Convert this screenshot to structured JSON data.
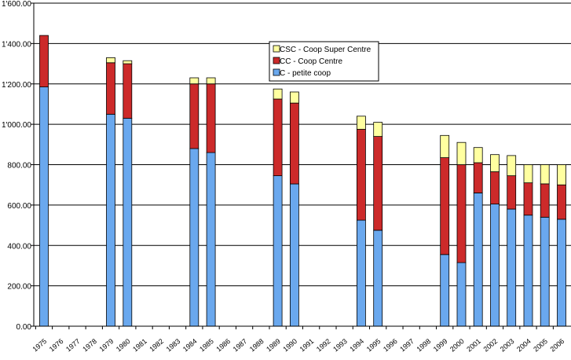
{
  "chart_data": {
    "type": "bar",
    "stacked": true,
    "title": "",
    "xlabel": "",
    "ylabel": "",
    "ylim": [
      0,
      1600
    ],
    "ytick_values": [
      0,
      200,
      400,
      600,
      800,
      1000,
      1200,
      1400,
      1600
    ],
    "ytick_labels": [
      "0.00",
      "200.00",
      "400.00",
      "600.00",
      "800.00",
      "1'000.00",
      "1'200.00",
      "1'400.00",
      "1'600.00"
    ],
    "grid": "horizontal",
    "legend_position": "top-center",
    "categories": [
      "1975",
      "1976",
      "1977",
      "1978",
      "1979",
      "1980",
      "1981",
      "1982",
      "1983",
      "1984",
      "1985",
      "1986",
      "1987",
      "1988",
      "1989",
      "1990",
      "1991",
      "1992",
      "1993",
      "1994",
      "1995",
      "1996",
      "1997",
      "1998",
      "1999",
      "2000",
      "2001",
      "2002",
      "2003",
      "2004",
      "2005",
      "2006"
    ],
    "series": [
      {
        "name": "C - petite coop",
        "color": "#6aa8ee",
        "values": [
          1185,
          null,
          null,
          null,
          1050,
          1030,
          null,
          null,
          null,
          880,
          860,
          null,
          null,
          null,
          745,
          705,
          null,
          null,
          null,
          525,
          475,
          null,
          null,
          null,
          355,
          315,
          660,
          605,
          580,
          550,
          540,
          530
        ]
      },
      {
        "name": "CC - Coop Centre",
        "color": "#cc2a2a",
        "values": [
          255,
          null,
          null,
          null,
          255,
          270,
          null,
          null,
          null,
          320,
          340,
          null,
          null,
          null,
          380,
          400,
          null,
          null,
          null,
          450,
          465,
          null,
          null,
          null,
          480,
          485,
          150,
          160,
          165,
          160,
          165,
          170
        ]
      },
      {
        "name": "CSC - Coop Super Centre",
        "color": "#ffffa0",
        "values": [
          0,
          null,
          null,
          null,
          25,
          15,
          null,
          null,
          null,
          30,
          30,
          null,
          null,
          null,
          50,
          55,
          null,
          null,
          null,
          65,
          70,
          null,
          null,
          null,
          110,
          110,
          75,
          85,
          100,
          90,
          95,
          100
        ]
      }
    ]
  }
}
